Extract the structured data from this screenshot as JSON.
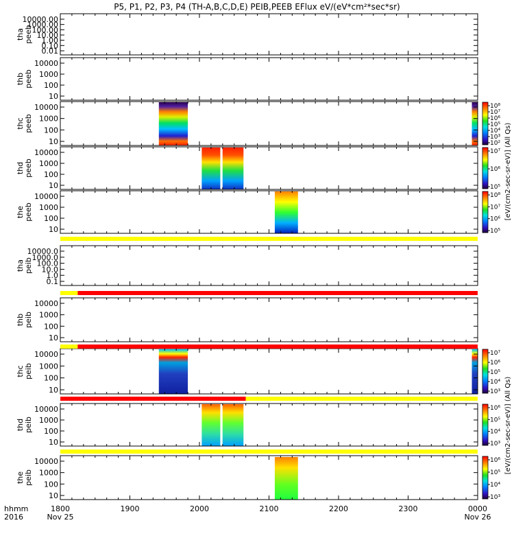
{
  "title": "P5, P1, P2, P3, P4 (TH-A,B,C,D,E) PEIB,PEEB EFlux eV/(eV*cm²*sec*sr)",
  "colorbar_labels": {
    "peeb": "[eV/(cm2-sec-sr-eV)] (All Qs)",
    "peib": "[eV/(cm2-sec-sr-eV)] (All Qs)"
  },
  "chart_data": {
    "type": "heatmap",
    "title": "P5, P1, P2, P3, P4 (TH-A,B,C,D,E) PEIB,PEEB EFlux eV/(eV*cm²*sec*sr)",
    "x_axis": {
      "label": "hhmm 2016",
      "label_line1": "hhmm",
      "label_line2": "2016",
      "range": [
        "1800",
        "0000"
      ],
      "ticks": [
        "1800",
        "1900",
        "2000",
        "2100",
        "2200",
        "2300",
        "0000"
      ],
      "dates": [
        {
          "at": "1800",
          "text": "Nov 25"
        },
        {
          "at": "0000",
          "text": "Nov 26"
        }
      ]
    },
    "panels": [
      {
        "probe": "tha",
        "product": "peeb",
        "yticks": [
          "10000.00",
          "1000.00",
          "100.00",
          "10.00",
          "1.00",
          "0.10",
          "0.01"
        ],
        "data": []
      },
      {
        "probe": "thb",
        "product": "peeb",
        "yticks": [
          "10000",
          "1000",
          "100",
          "10"
        ],
        "data": []
      },
      {
        "probe": "thc",
        "product": "peeb",
        "yticks": [
          "10000",
          "1000",
          "100",
          "10"
        ],
        "data": [
          {
            "start": 1925,
            "end": 1950
          },
          {
            "start": 2355,
            "end": 2400
          }
        ],
        "colorbar": {
          "ticks": [
            "10⁸",
            "10⁷",
            "10⁶",
            "10⁵",
            "10⁴",
            "10³",
            "10²"
          ]
        }
      },
      {
        "probe": "thd",
        "product": "peeb",
        "yticks": [
          "10000",
          "1000",
          "100",
          "10"
        ],
        "data": [
          {
            "start": 1962,
            "end": 1978
          },
          {
            "start": 1980,
            "end": 1997
          },
          {
            "start": 2020,
            "end": 2038
          }
        ],
        "colorbar": {
          "ticks": [
            "10⁷",
            "10⁶",
            "10⁵"
          ]
        }
      },
      {
        "probe": "the",
        "product": "peeb",
        "yticks": [
          "10000",
          "1000",
          "100",
          "10"
        ],
        "data": [
          {
            "start": 2105,
            "end": 2125
          }
        ],
        "colorbar": {
          "ticks": [
            "10⁸",
            "10⁷",
            "10⁶",
            "10⁵"
          ]
        }
      },
      {
        "probe": "tha",
        "product": "peib",
        "yticks": [
          "10000.0",
          "1000.0",
          "100.0",
          "10.0",
          "1.0",
          "0.1"
        ],
        "data": []
      },
      {
        "probe": "thb",
        "product": "peib",
        "yticks": [
          "10000",
          "1000",
          "100",
          "10"
        ],
        "data": []
      },
      {
        "probe": "thc",
        "product": "peib",
        "yticks": [
          "10000",
          "1000",
          "100",
          "10"
        ],
        "data": [
          {
            "start": 1925,
            "end": 1950
          },
          {
            "start": 2355,
            "end": 2400
          }
        ],
        "colorbar": {
          "ticks": [
            "10⁷",
            "10⁶",
            "10⁵",
            "10⁴",
            "10³"
          ]
        }
      },
      {
        "probe": "thd",
        "product": "peib",
        "yticks": [
          "10000",
          "1000",
          "100",
          "10"
        ],
        "data": [
          {
            "start": 1962,
            "end": 1978
          },
          {
            "start": 1980,
            "end": 1997
          },
          {
            "start": 2020,
            "end": 2038
          }
        ],
        "colorbar": {
          "ticks": [
            "10⁶",
            "10⁵",
            "10⁴",
            "10³"
          ]
        }
      },
      {
        "probe": "the",
        "product": "peib",
        "yticks": [
          "10000",
          "1000",
          "100",
          "10"
        ],
        "data": [
          {
            "start": 2105,
            "end": 2125
          }
        ],
        "colorbar": {
          "ticks": [
            "10⁶",
            "10⁵",
            "10⁴",
            "10³"
          ]
        }
      }
    ],
    "mode_bars": [
      {
        "after_panel": 4,
        "segments": [
          {
            "start": 1800,
            "end": 2400,
            "color": "#ffff00"
          }
        ]
      },
      {
        "after_panel": 5,
        "segments": [
          {
            "start": 1800,
            "end": 1815,
            "color": "#ffff00"
          },
          {
            "start": 1815,
            "end": 2400,
            "color": "#ff0000"
          }
        ]
      },
      {
        "after_panel": 6,
        "segments": [
          {
            "start": 1800,
            "end": 1815,
            "color": "#ffff00"
          },
          {
            "start": 1815,
            "end": 2400,
            "color": "#ff0000"
          }
        ]
      },
      {
        "after_panel": 7,
        "segments": [
          {
            "start": 1800,
            "end": 2040,
            "color": "#ff0000"
          },
          {
            "start": 2040,
            "end": 2400,
            "color": "#ffff00"
          }
        ]
      },
      {
        "after_panel": 8,
        "segments": [
          {
            "start": 1800,
            "end": 2400,
            "color": "#ffff00"
          }
        ]
      }
    ]
  }
}
